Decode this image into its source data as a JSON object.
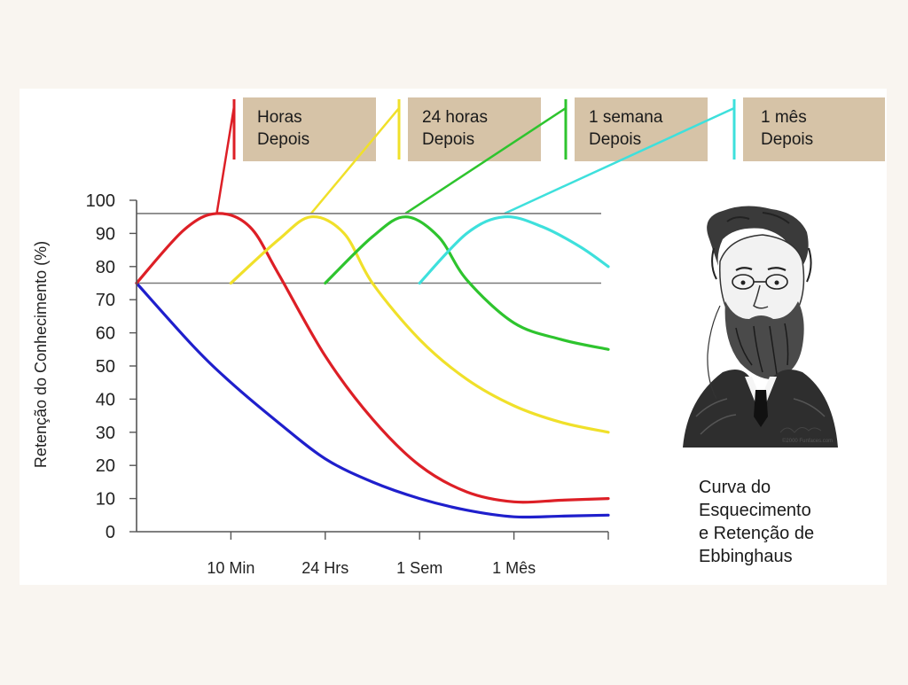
{
  "chart_data": {
    "type": "line",
    "title": "Curva do Esquecimento e Retenção de Ebbinghaus",
    "caption_lines": [
      "Curva do",
      "Esquecimento",
      "e Retenção de",
      "Ebbinghaus"
    ],
    "ylabel": "Retenção do Conhecimento (%)",
    "xlabel": "",
    "ylim": [
      0,
      100
    ],
    "yticks": [
      0,
      10,
      20,
      30,
      40,
      50,
      60,
      70,
      80,
      90,
      100
    ],
    "x_tick_labels": [
      "10 Min",
      "24 Hrs",
      "1 Sem",
      "1 Mês"
    ],
    "xlim": [
      0,
      5
    ],
    "reference_lines": [
      75,
      96
    ],
    "grid": false,
    "series": [
      {
        "color": "#1f1fcc",
        "points": [
          [
            0,
            75
          ],
          [
            0.6,
            56
          ],
          [
            1,
            45
          ],
          [
            1.5,
            33
          ],
          [
            2,
            22
          ],
          [
            2.5,
            15
          ],
          [
            3,
            10
          ],
          [
            3.5,
            6.5
          ],
          [
            4,
            4.5
          ],
          [
            4.5,
            4.7
          ],
          [
            5,
            5
          ]
        ]
      },
      {
        "color": "#dd1f26",
        "points": [
          [
            0,
            75
          ],
          [
            0.5,
            91
          ],
          [
            0.85,
            96
          ],
          [
            1.2,
            92
          ],
          [
            1.5,
            78
          ],
          [
            2,
            53
          ],
          [
            2.5,
            34
          ],
          [
            3,
            20
          ],
          [
            3.5,
            12
          ],
          [
            4,
            9
          ],
          [
            4.5,
            9.5
          ],
          [
            5,
            10
          ]
        ]
      },
      {
        "color": "#f0e02a",
        "points": [
          [
            1,
            75
          ],
          [
            1.5,
            88
          ],
          [
            1.85,
            95
          ],
          [
            2.2,
            90
          ],
          [
            2.5,
            75
          ],
          [
            3,
            58
          ],
          [
            3.5,
            46
          ],
          [
            4,
            38
          ],
          [
            4.5,
            33
          ],
          [
            5,
            30
          ]
        ]
      },
      {
        "color": "#2ec42e",
        "points": [
          [
            2,
            75
          ],
          [
            2.5,
            89
          ],
          [
            2.85,
            95
          ],
          [
            3.2,
            89
          ],
          [
            3.5,
            76
          ],
          [
            4,
            63
          ],
          [
            4.5,
            58
          ],
          [
            5,
            55
          ]
        ]
      },
      {
        "color": "#3ee0dc",
        "points": [
          [
            3,
            75
          ],
          [
            3.5,
            90
          ],
          [
            3.9,
            95
          ],
          [
            4.3,
            92
          ],
          [
            4.7,
            86
          ],
          [
            5,
            80
          ]
        ]
      }
    ],
    "annotations": [
      {
        "lines": [
          "Horas",
          "Depois"
        ],
        "color": "#dd1f26"
      },
      {
        "lines": [
          "24 horas",
          "Depois"
        ],
        "color": "#f0e02a"
      },
      {
        "lines": [
          "1 semana",
          "Depois"
        ],
        "color": "#2ec42e"
      },
      {
        "lines": [
          "1 mês",
          "Depois"
        ],
        "color": "#3ee0dc"
      }
    ],
    "annotation_box_color": "#d6c3a7",
    "axis_color": "#555555",
    "reference_line_color": "#7a7a7a"
  },
  "portrait": {
    "icon": "ebbinghaus-portrait-engraving",
    "credit": "©2000 Funfaces.com"
  }
}
